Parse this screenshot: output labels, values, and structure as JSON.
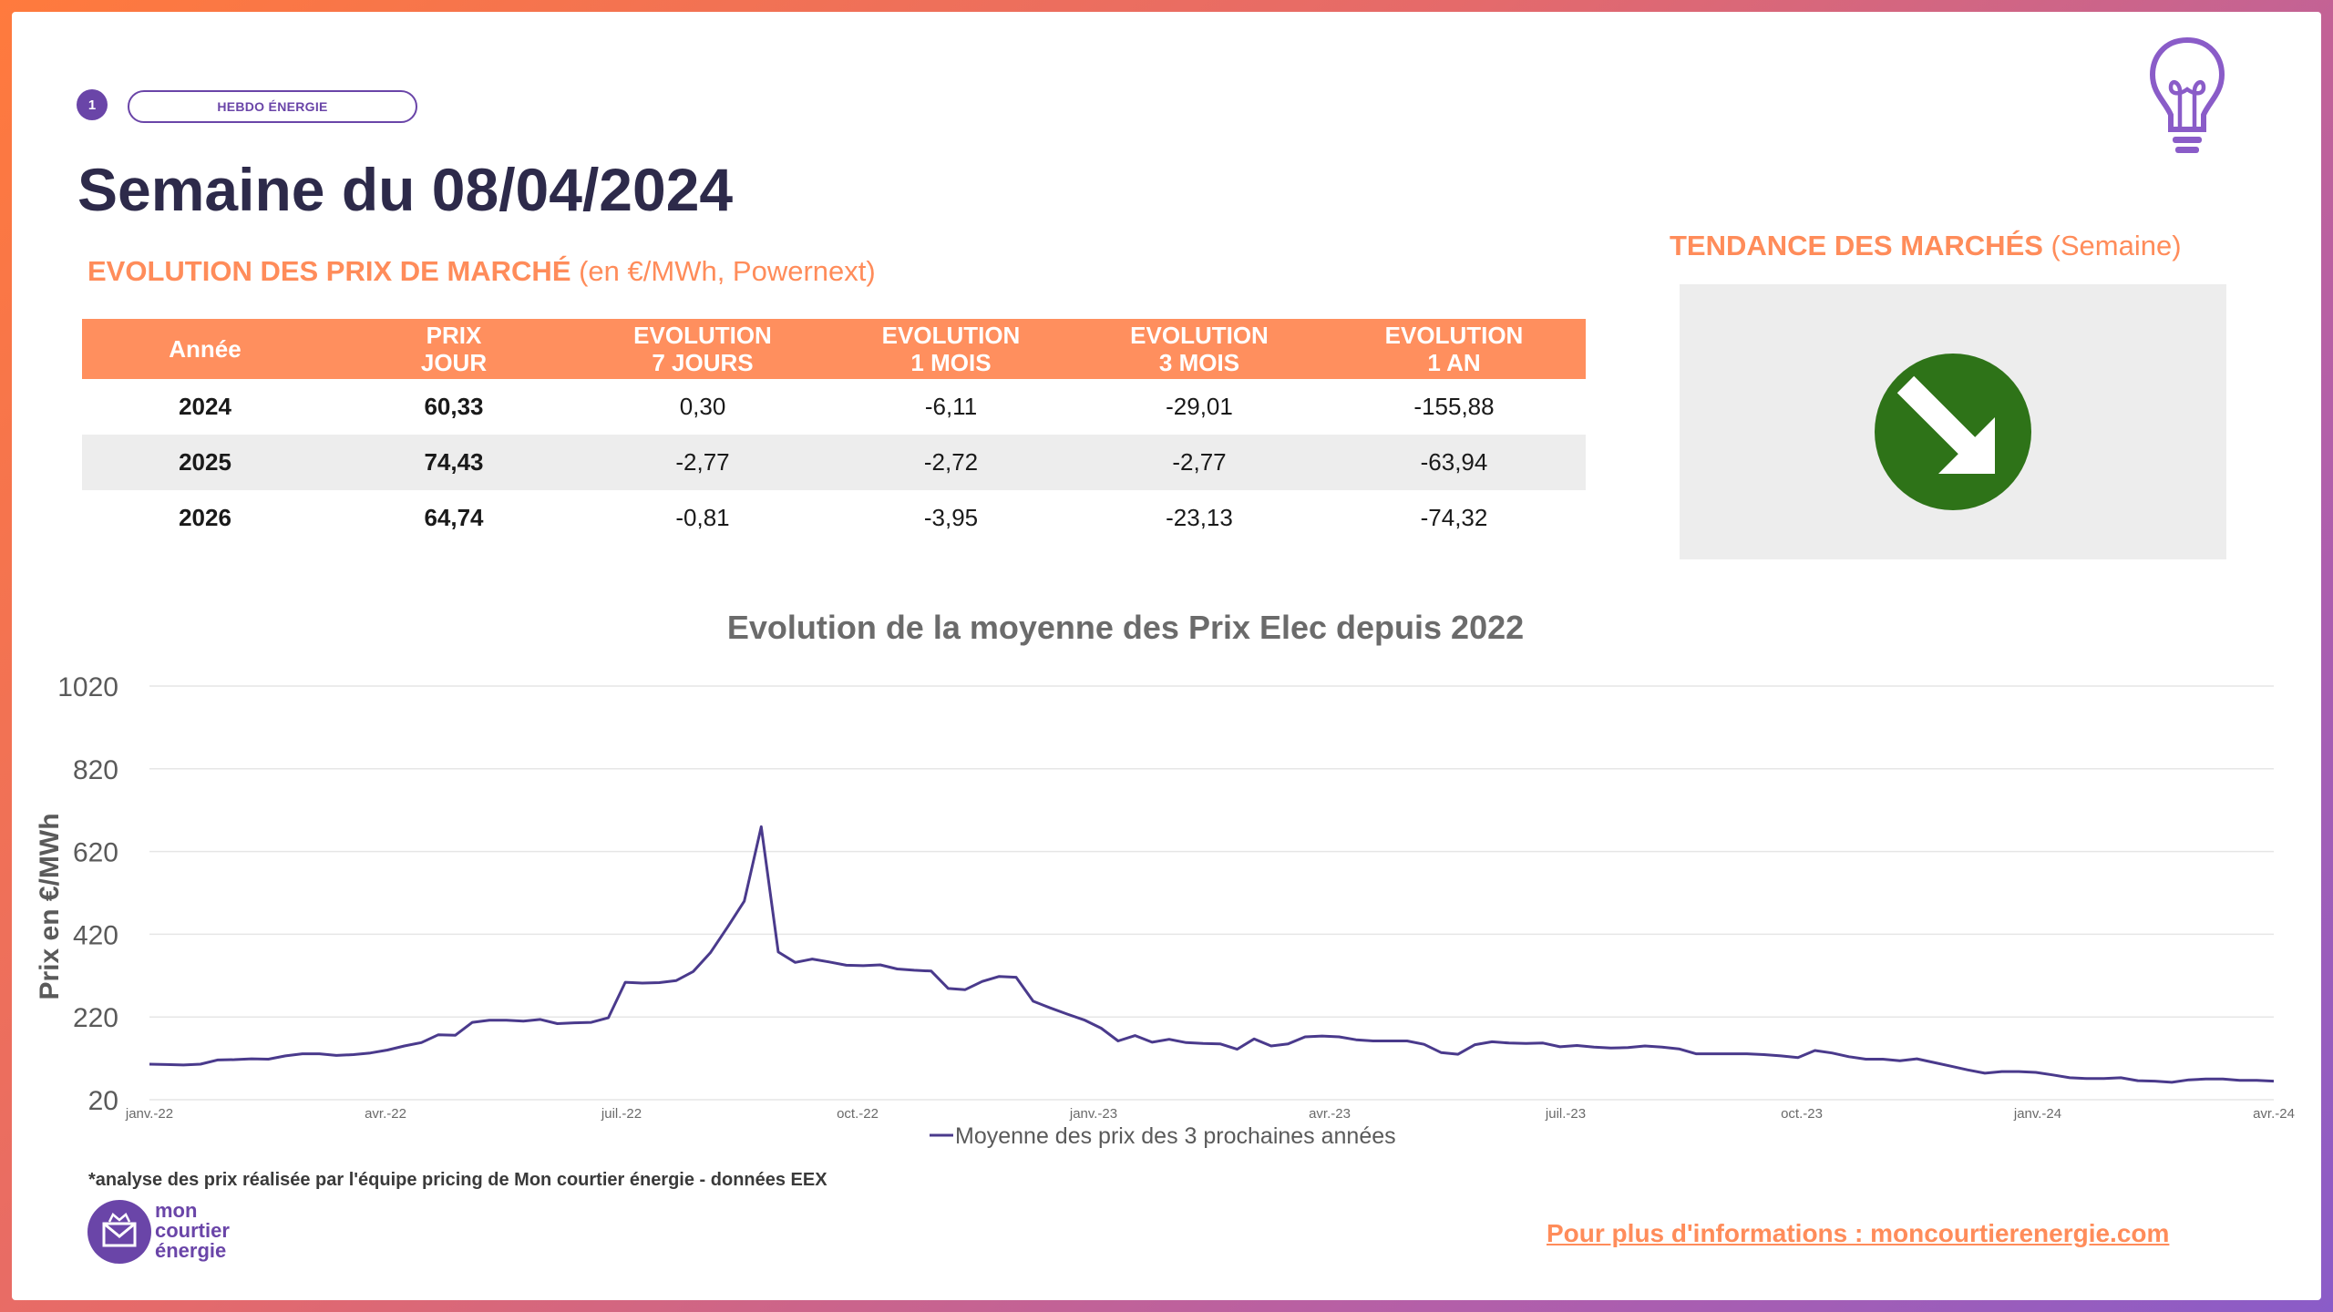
{
  "header": {
    "page_number": "1",
    "tag": "HEBDO ÉNERGIE",
    "title": "Semaine du 08/04/2024"
  },
  "prices_section": {
    "heading_bold": "EVOLUTION DES PRIX DE MARCHÉ",
    "heading_light": " (en €/MWh, Powernext)"
  },
  "trend_section": {
    "heading_bold": "TENDANCE DES MARCHÉS",
    "heading_light": " (Semaine)",
    "direction": "down",
    "indicator_color": "#2e7318"
  },
  "table": {
    "headers": [
      [
        "Année",
        ""
      ],
      [
        "PRIX",
        "JOUR"
      ],
      [
        "EVOLUTION",
        "7 JOURS"
      ],
      [
        "EVOLUTION",
        "1 MOIS"
      ],
      [
        "EVOLUTION",
        "3 MOIS"
      ],
      [
        "EVOLUTION",
        "1 AN"
      ]
    ],
    "rows": [
      {
        "year": "2024",
        "price": "60,33",
        "d7": "0,30",
        "m1": "-6,11",
        "m3": "-29,01",
        "y1": "-155,88"
      },
      {
        "year": "2025",
        "price": "74,43",
        "d7": "-2,77",
        "m1": "-2,72",
        "m3": "-2,77",
        "y1": "-63,94"
      },
      {
        "year": "2026",
        "price": "64,74",
        "d7": "-0,81",
        "m1": "-3,95",
        "m3": "-23,13",
        "y1": "-74,32"
      }
    ]
  },
  "chart_data": {
    "type": "line",
    "title": "Evolution de la moyenne des Prix Elec depuis 2022",
    "ylabel": "Prix en €/MWh",
    "xlabel": "",
    "ylim": [
      20,
      1020
    ],
    "yticks": [
      20,
      220,
      420,
      620,
      820,
      1020
    ],
    "xticks": [
      "janv.-22",
      "avr.-22",
      "juil.-22",
      "oct.-22",
      "janv.-23",
      "avr.-23",
      "juil.-23",
      "oct.-23",
      "janv.-24",
      "avr.-24"
    ],
    "grid": true,
    "legend": "bottom",
    "series": [
      {
        "name": "Moyenne des prix des 3 prochaines années",
        "color": "#4a3a8c",
        "values": [
          106,
          105,
          104,
          106,
          116,
          117,
          119,
          118,
          126,
          131,
          131,
          127,
          129,
          133,
          140,
          150,
          158,
          177,
          176,
          207,
          212,
          212,
          210,
          214,
          204,
          206,
          207,
          218,
          304,
          302,
          303,
          308,
          330,
          375,
          436,
          500,
          680,
          377,
          352,
          360,
          353,
          345,
          344,
          346,
          336,
          333,
          331,
          289,
          286,
          306,
          318,
          316,
          258,
          242,
          227,
          213,
          193,
          162,
          175,
          159,
          166,
          158,
          156,
          155,
          142,
          167,
          150,
          155,
          172,
          174,
          172,
          165,
          162,
          162,
          162,
          154,
          134,
          130,
          153,
          160,
          157,
          156,
          157,
          148,
          151,
          147,
          145,
          146,
          150,
          147,
          143,
          131,
          131,
          131,
          131,
          129,
          126,
          122,
          139,
          133,
          124,
          118,
          118,
          114,
          119,
          110,
          101,
          92,
          84,
          88,
          88,
          86,
          80,
          73,
          71,
          71,
          73,
          66,
          65,
          62,
          68,
          70,
          70,
          67,
          67,
          65
        ]
      }
    ]
  },
  "footer": {
    "footnote": "*analyse des prix réalisée par l'équipe pricing de Mon courtier énergie -  données EEX",
    "logo_lines": [
      "mon",
      "courtier",
      "énergie"
    ],
    "more_info": "Pour plus d'informations : moncourtierenergie.com"
  }
}
